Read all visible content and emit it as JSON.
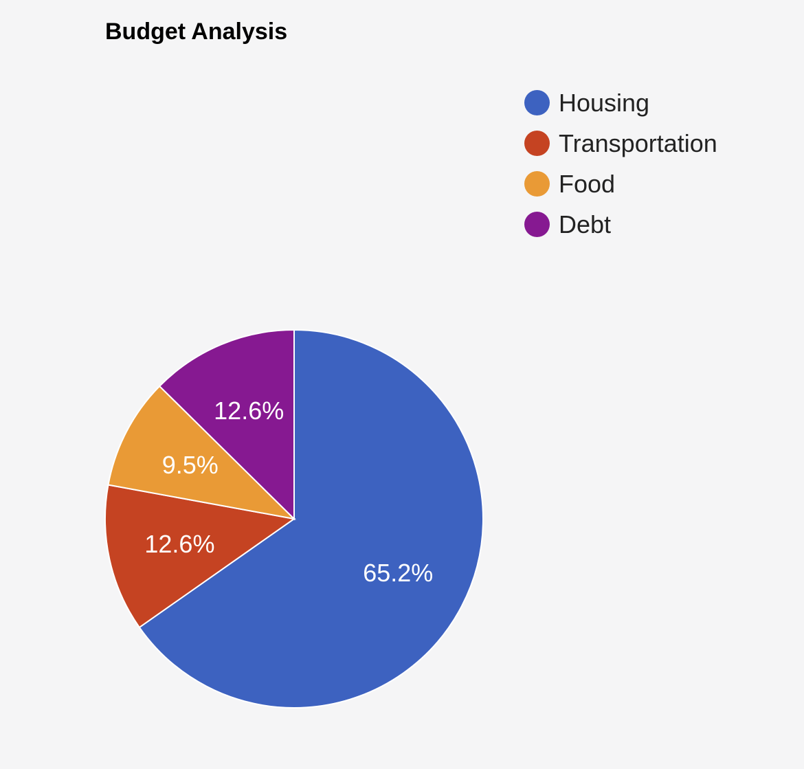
{
  "chart_data": {
    "type": "pie",
    "title": "Budget Analysis",
    "categories": [
      "Housing",
      "Transportation",
      "Food",
      "Debt"
    ],
    "values": [
      65.2,
      12.6,
      9.5,
      12.6
    ],
    "data_labels": [
      "65.2%",
      "12.6%",
      "9.5%",
      "12.6%"
    ],
    "colors": [
      "#3d62c0",
      "#c54322",
      "#e99a36",
      "#861991"
    ],
    "legend_position": "top-right"
  }
}
